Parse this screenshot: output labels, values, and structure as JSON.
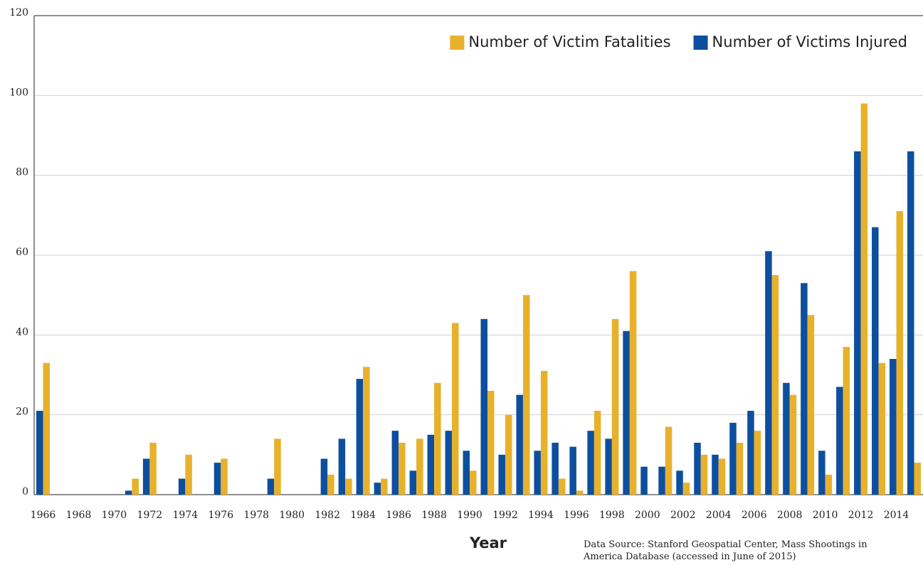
{
  "chart_data": {
    "type": "bar",
    "x_label": "Year",
    "source": "Data Source: Stanford Geospatial Center, Mass Shootings in America Database (accessed in June of 2015)",
    "categories": [
      "1966",
      null,
      "1968",
      null,
      "1970",
      null,
      "1972",
      null,
      "1974",
      null,
      "1976",
      null,
      "1978",
      null,
      "1980",
      null,
      "1982",
      null,
      "1984",
      null,
      "1986",
      null,
      "1988",
      null,
      "1990",
      null,
      "1992",
      null,
      "1994",
      null,
      "1996",
      null,
      "1998",
      null,
      "2000",
      null,
      "2002",
      null,
      "2004",
      null,
      "2006",
      null,
      "2008",
      null,
      "2010",
      null,
      "2012",
      null,
      "2014",
      null
    ],
    "series": [
      {
        "name": "Number of Victims Injured",
        "color": "#0d4f9e",
        "values": [
          21,
          0,
          0,
          0,
          0,
          1,
          9,
          0,
          4,
          0,
          8,
          0,
          0,
          4,
          0,
          0,
          9,
          14,
          29,
          3,
          16,
          6,
          15,
          16,
          11,
          44,
          10,
          25,
          11,
          13,
          12,
          16,
          14,
          41,
          7,
          7,
          6,
          13,
          10,
          18,
          21,
          61,
          28,
          53,
          11,
          27,
          86,
          67,
          34,
          86
        ]
      },
      {
        "name": "Number of Victim Fatalities",
        "color": "#e8b12c",
        "values": [
          33,
          0,
          0,
          0,
          0,
          4,
          13,
          0,
          10,
          0,
          9,
          0,
          0,
          14,
          0,
          0,
          5,
          4,
          32,
          4,
          13,
          14,
          28,
          43,
          6,
          26,
          20,
          50,
          31,
          4,
          1,
          21,
          44,
          56,
          0,
          17,
          3,
          10,
          9,
          13,
          16,
          55,
          25,
          45,
          5,
          37,
          98,
          33,
          71,
          8
        ]
      }
    ],
    "ylim": [
      0,
      120
    ],
    "yticks": [
      0,
      20,
      40,
      60,
      80,
      100,
      120
    ],
    "grid": true,
    "legend": "top-right"
  }
}
